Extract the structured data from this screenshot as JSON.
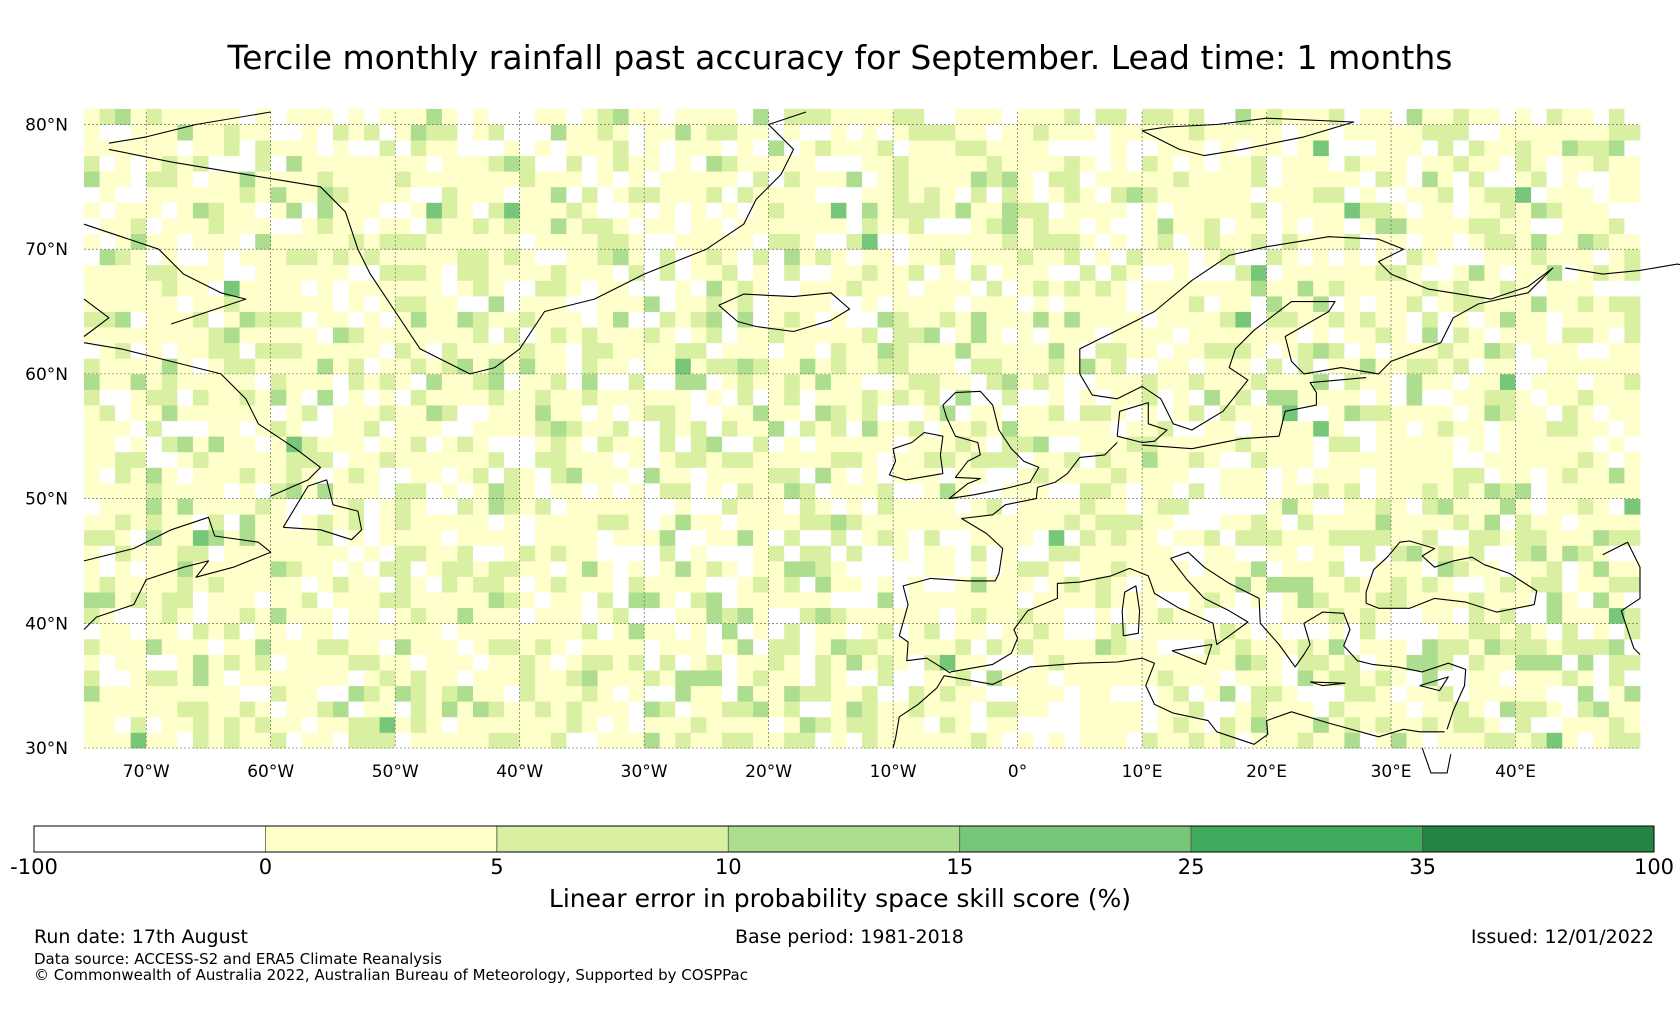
{
  "title": "Tercile monthly rainfall past accuracy for September. Lead time: 1 months",
  "map": {
    "lon_range": [
      -75,
      50
    ],
    "lat_range": [
      30,
      81
    ],
    "lat_ticks": [
      {
        "value": 80,
        "label": "80°N"
      },
      {
        "value": 70,
        "label": "70°N"
      },
      {
        "value": 60,
        "label": "60°N"
      },
      {
        "value": 50,
        "label": "50°N"
      },
      {
        "value": 40,
        "label": "40°N"
      },
      {
        "value": 30,
        "label": "30°N"
      }
    ],
    "lon_ticks": [
      {
        "value": -70,
        "label": "70°W"
      },
      {
        "value": -60,
        "label": "60°W"
      },
      {
        "value": -50,
        "label": "50°W"
      },
      {
        "value": -40,
        "label": "40°W"
      },
      {
        "value": -30,
        "label": "30°W"
      },
      {
        "value": -20,
        "label": "20°W"
      },
      {
        "value": -10,
        "label": "10°W"
      },
      {
        "value": 0,
        "label": "0°"
      },
      {
        "value": 10,
        "label": "10°E"
      },
      {
        "value": 20,
        "label": "20°E"
      },
      {
        "value": 30,
        "label": "30°E"
      },
      {
        "value": 40,
        "label": "40°E"
      }
    ],
    "coastline_color": "#000000",
    "gridline_color": "#555555"
  },
  "colorbar": {
    "boundaries": [
      "-100",
      "0",
      "5",
      "10",
      "15",
      "25",
      "35",
      "100"
    ],
    "colors": [
      "#ffffff",
      "#ffffcc",
      "#d9f0a3",
      "#addd8e",
      "#78c679",
      "#41ab5d",
      "#238443"
    ],
    "label": "Linear error in probability space skill score (%)"
  },
  "footer": {
    "run_date": "Run date: 17th August",
    "base_period": "Base period: 1981-2018",
    "issued": "Issued: 12/01/2022",
    "data_source": "Data source: ACCESS-S2 and ERA5 Climate Reanalysis",
    "copyright": "© Commonwealth of Australia 2022, Australian Bureau of Meteorology, Supported by COSPPac"
  }
}
